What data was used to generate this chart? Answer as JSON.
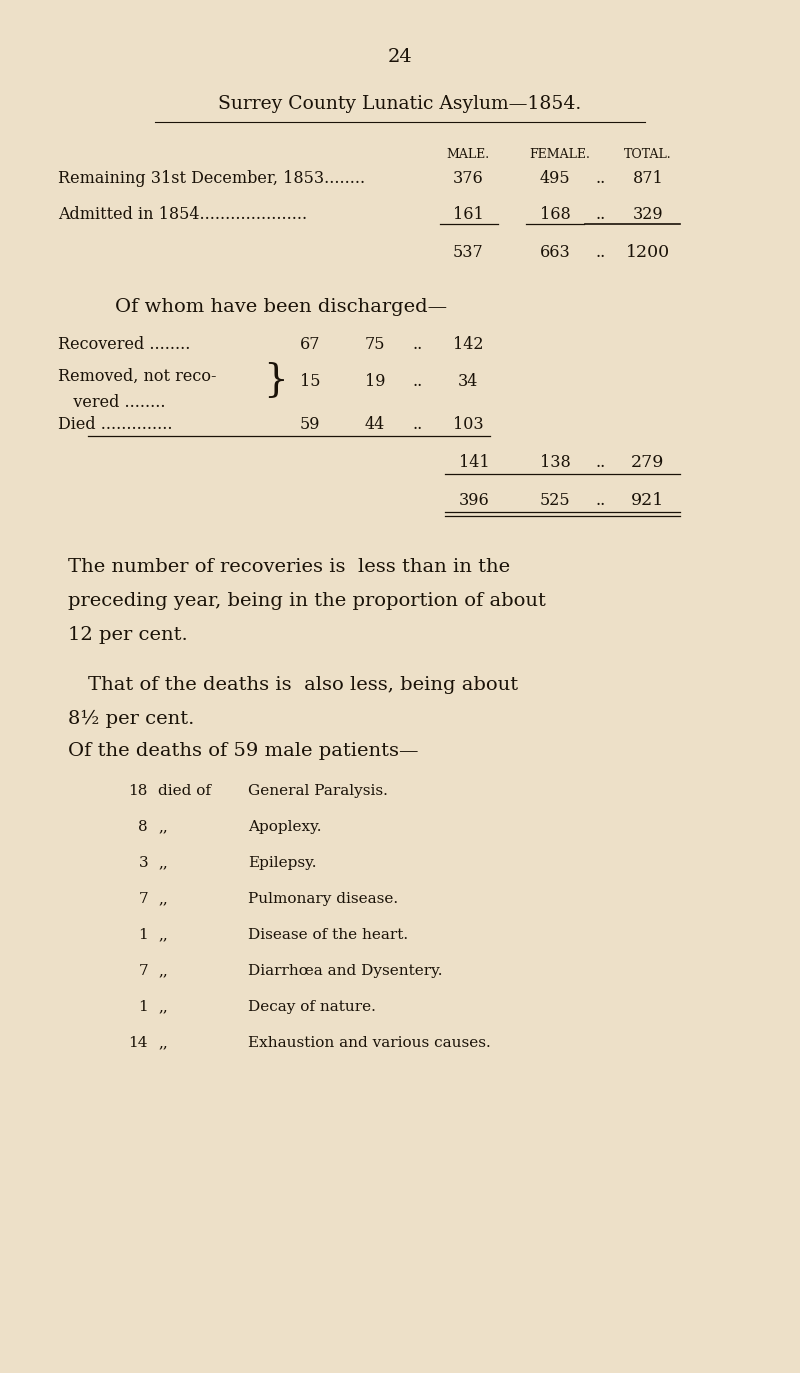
{
  "bg_color": "#ede0c8",
  "text_color": "#1a1208",
  "line_color": "#1a1208",
  "page_number": "24",
  "title": "Surrey County Lunatic Asylum—1854.",
  "col_header_male": "MALE.",
  "col_header_female": "FEMALE.",
  "col_header_total": "TOTAL.",
  "row1_label": "Remaining 31st December, 1853........",
  "row1_male": "376",
  "row1_female": "495",
  "row1_dots": "..",
  "row1_total": "871",
  "row2_label": "Admitted in 1854.....................",
  "row2_male": "161",
  "row2_female": "168",
  "row2_dots": "..",
  "row2_total": "329",
  "sub1_male": "537",
  "sub1_female": "663",
  "sub1_dots": "..",
  "sub1_total": "1200",
  "discharged_hdr": "Of whom have been discharged—",
  "rec_label": "Recovered ........",
  "rec_male": "67",
  "rec_female": "75",
  "rec_dots": "..",
  "rec_total": "142",
  "rem_label1": "Removed, not reco-",
  "rem_label2": "   vered ........",
  "rem_male": "15",
  "rem_female": "19",
  "rem_dots": "..",
  "rem_total": "34",
  "died_label": "Died ..............",
  "died_male": "59",
  "died_female": "44",
  "died_dots": "..",
  "died_total": "103",
  "sub2_male": "141",
  "sub2_female": "138",
  "sub2_dots": "..",
  "sub2_total": "279",
  "rem2_male": "396",
  "rem2_female": "525",
  "rem2_dots": "..",
  "rem2_total": "921",
  "para1a": "The number of recoveries is  less than in the",
  "para1b": "preceding year, being in the proportion of about",
  "para1c": "12 per cent.",
  "para2a": "That of the deaths is  also less, being about",
  "para2b": "8½ per cent.",
  "para3": "Of the deaths of 59 male patients—",
  "causes": [
    [
      "18",
      "died of",
      "General Paralysis."
    ],
    [
      "8",
      ",,",
      "Apoplexy."
    ],
    [
      "3",
      ",,",
      "Epilepsy."
    ],
    [
      "7",
      ",,",
      "Pulmonary disease."
    ],
    [
      "1",
      ",,",
      "Disease of the heart."
    ],
    [
      "7",
      ",,",
      "Diarrhœa and Dysentery."
    ],
    [
      "1",
      ",,",
      "Decay of nature."
    ],
    [
      "14",
      ",,",
      "Exhaustion and various causes."
    ]
  ]
}
